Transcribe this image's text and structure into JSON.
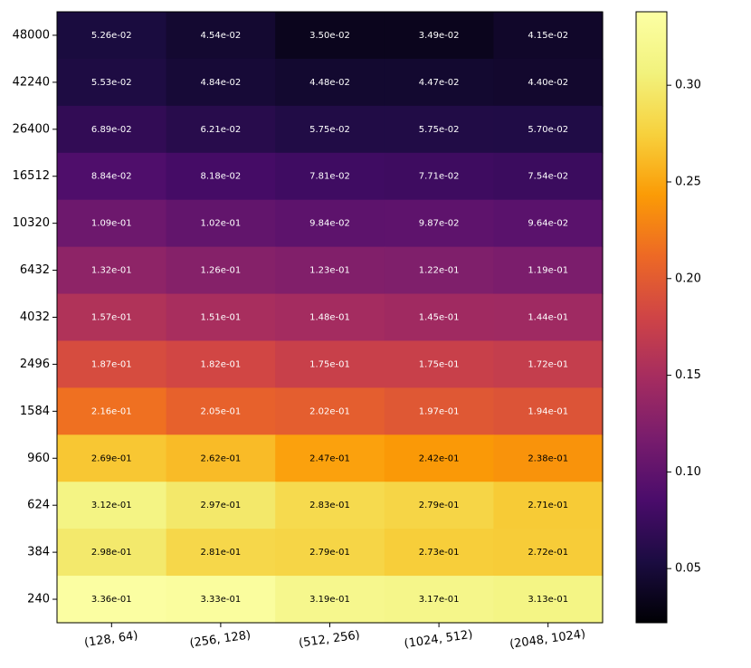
{
  "chart_data": {
    "type": "heatmap",
    "title": "",
    "xlabel": "",
    "ylabel": "",
    "x_categories": [
      "(128, 64)",
      "(256, 128)",
      "(512, 256)",
      "(1024, 512)",
      "(2048, 1024)"
    ],
    "y_categories": [
      "48000",
      "42240",
      "26400",
      "16512",
      "10320",
      "6432",
      "4032",
      "2496",
      "1584",
      "960",
      "624",
      "384",
      "240"
    ],
    "values": [
      [
        0.0526,
        0.0454,
        0.035,
        0.0349,
        0.0415
      ],
      [
        0.0553,
        0.0484,
        0.0448,
        0.0447,
        0.044
      ],
      [
        0.0689,
        0.0621,
        0.0575,
        0.0575,
        0.057
      ],
      [
        0.0884,
        0.0818,
        0.0781,
        0.0771,
        0.0754
      ],
      [
        0.109,
        0.102,
        0.0984,
        0.0987,
        0.0964
      ],
      [
        0.132,
        0.126,
        0.123,
        0.122,
        0.119
      ],
      [
        0.157,
        0.151,
        0.148,
        0.145,
        0.144
      ],
      [
        0.187,
        0.182,
        0.175,
        0.175,
        0.172
      ],
      [
        0.216,
        0.205,
        0.202,
        0.197,
        0.194
      ],
      [
        0.269,
        0.262,
        0.247,
        0.242,
        0.238
      ],
      [
        0.312,
        0.297,
        0.283,
        0.279,
        0.271
      ],
      [
        0.298,
        0.281,
        0.279,
        0.273,
        0.272
      ],
      [
        0.336,
        0.333,
        0.319,
        0.317,
        0.313
      ]
    ],
    "labels": [
      [
        "5.26e-02",
        "4.54e-02",
        "3.50e-02",
        "3.49e-02",
        "4.15e-02"
      ],
      [
        "5.53e-02",
        "4.84e-02",
        "4.48e-02",
        "4.47e-02",
        "4.40e-02"
      ],
      [
        "6.89e-02",
        "6.21e-02",
        "5.75e-02",
        "5.75e-02",
        "5.70e-02"
      ],
      [
        "8.84e-02",
        "8.18e-02",
        "7.81e-02",
        "7.71e-02",
        "7.54e-02"
      ],
      [
        "1.09e-01",
        "1.02e-01",
        "9.84e-02",
        "9.87e-02",
        "9.64e-02"
      ],
      [
        "1.32e-01",
        "1.26e-01",
        "1.23e-01",
        "1.22e-01",
        "1.19e-01"
      ],
      [
        "1.57e-01",
        "1.51e-01",
        "1.48e-01",
        "1.45e-01",
        "1.44e-01"
      ],
      [
        "1.87e-01",
        "1.82e-01",
        "1.75e-01",
        "1.75e-01",
        "1.72e-01"
      ],
      [
        "2.16e-01",
        "2.05e-01",
        "2.02e-01",
        "1.97e-01",
        "1.94e-01"
      ],
      [
        "2.69e-01",
        "2.62e-01",
        "2.47e-01",
        "2.42e-01",
        "2.38e-01"
      ],
      [
        "3.12e-01",
        "2.97e-01",
        "2.83e-01",
        "2.79e-01",
        "2.71e-01"
      ],
      [
        "2.98e-01",
        "2.81e-01",
        "2.79e-01",
        "2.73e-01",
        "2.72e-01"
      ],
      [
        "3.36e-01",
        "3.33e-01",
        "3.19e-01",
        "3.17e-01",
        "3.13e-01"
      ]
    ],
    "colormap": "inferno",
    "colorbar": {
      "range": [
        0.022,
        0.338
      ],
      "ticks": [
        0.05,
        0.1,
        0.15,
        0.2,
        0.25,
        0.3
      ],
      "tick_labels": [
        "0.05",
        "0.10",
        "0.15",
        "0.20",
        "0.25",
        "0.30"
      ]
    },
    "label_color_threshold": 0.22,
    "label_colors": {
      "light": "#ffffff",
      "dark": "#000000"
    },
    "xtick_rotation": "slight counter-clockwise"
  }
}
